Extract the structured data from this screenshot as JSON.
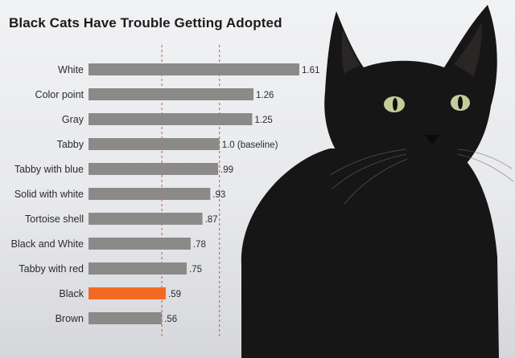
{
  "colors": {
    "bar": "#8c8a88",
    "highlight": "#f26a21",
    "ref_line": "#c0392b",
    "cat_fur": "#161616",
    "cat_eye": "#c4cc9a"
  },
  "image": {
    "subject": "black-cat-photo"
  },
  "chart_data": {
    "type": "bar",
    "orientation": "horizontal",
    "title": "Black Cats Have Trouble Getting Adopted",
    "categories": [
      "White",
      "Color point",
      "Gray",
      "Tabby",
      "Tabby with blue",
      "Solid with white",
      "Tortoise shell",
      "Black and White",
      "Tabby with red",
      "Black",
      "Brown"
    ],
    "values": [
      1.61,
      1.26,
      1.25,
      1.0,
      0.99,
      0.93,
      0.87,
      0.78,
      0.75,
      0.59,
      0.56
    ],
    "value_labels": [
      "1.61",
      "1.26",
      "1.25",
      "1.0 (baseline)",
      ".99",
      ".93",
      ".87",
      ".78",
      ".75",
      ".59",
      ".56"
    ],
    "highlight_category": "Black",
    "reference_lines": [
      0.56,
      1.0
    ],
    "xlim": [
      0,
      1.61
    ],
    "xlabel": "",
    "ylabel": "",
    "grid": false,
    "legend": "none"
  }
}
